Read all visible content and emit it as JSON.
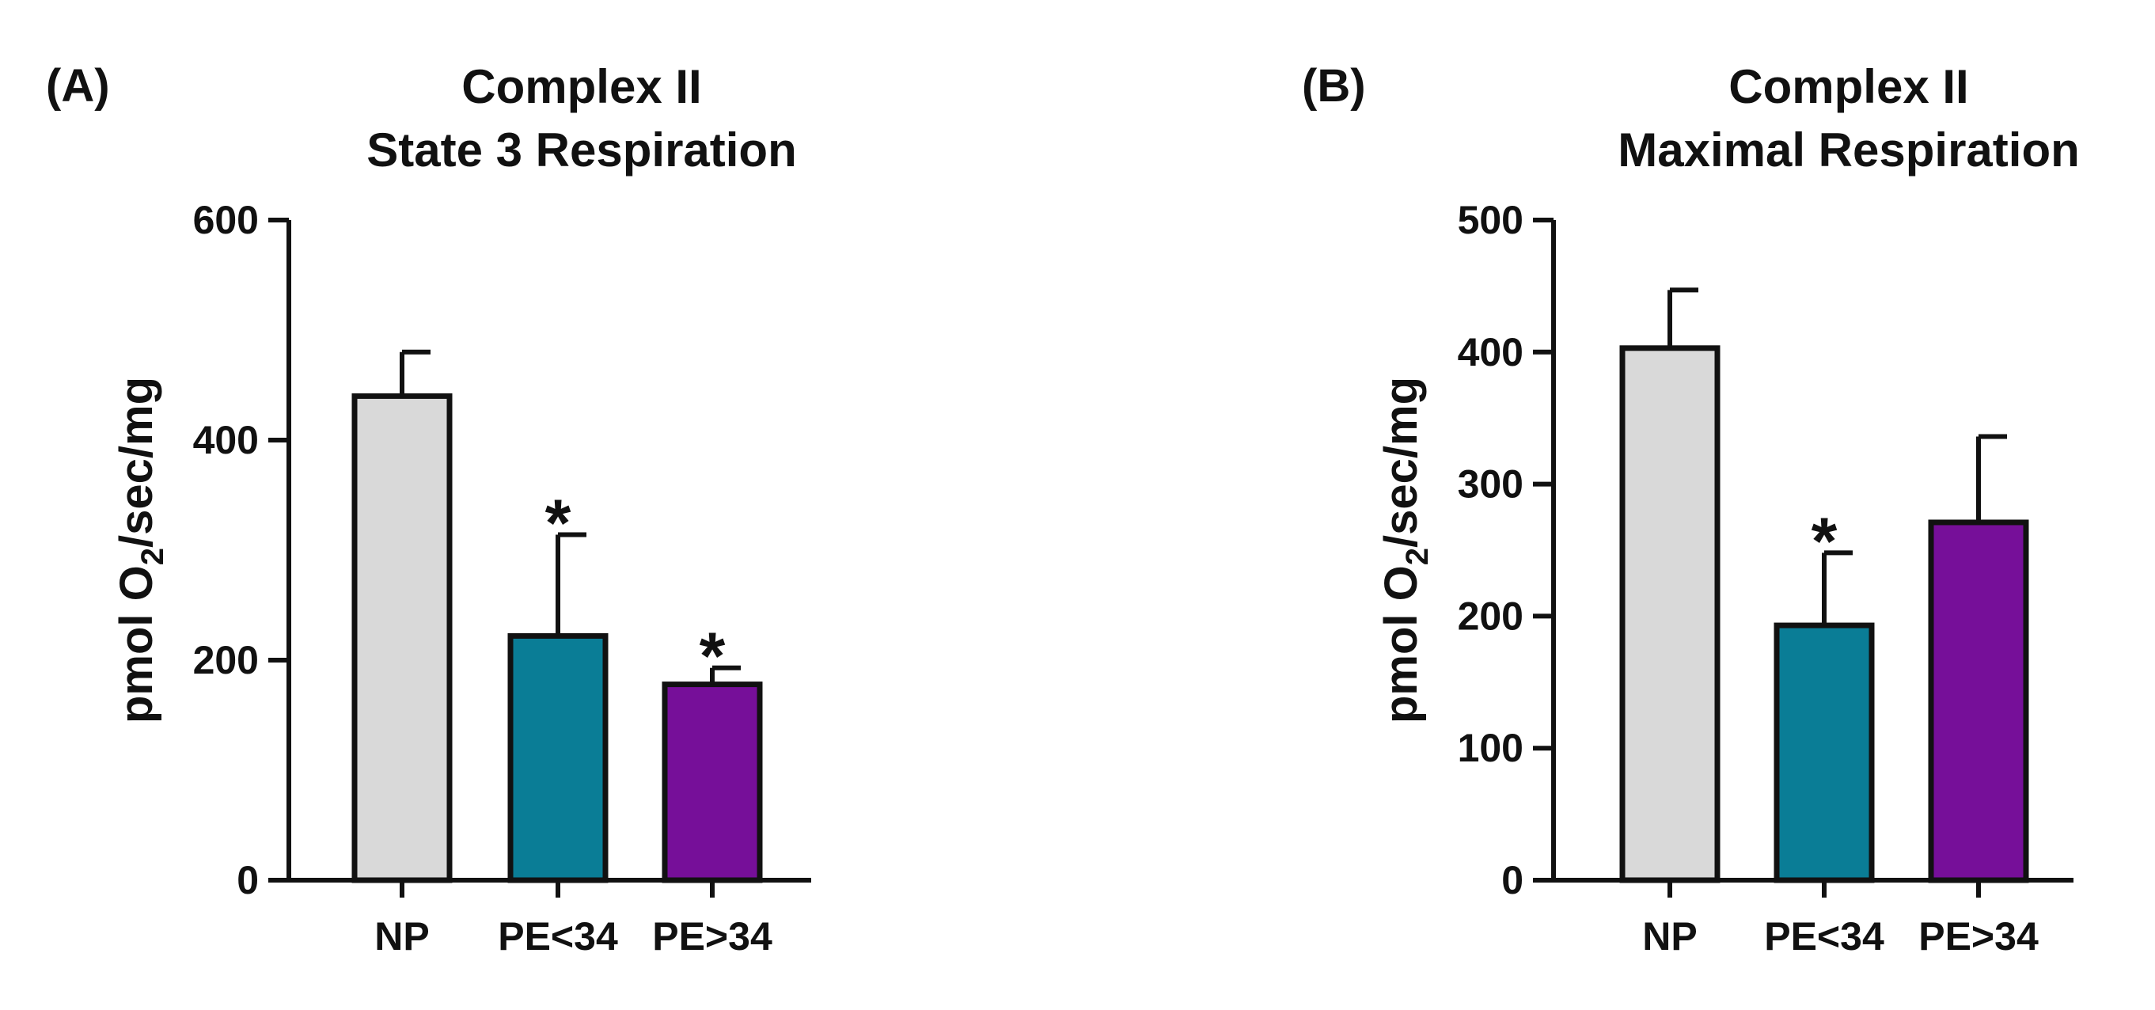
{
  "chart_data": [
    {
      "type": "bar",
      "panel": "(A)",
      "title": [
        "Complex II",
        "State 3 Respiration"
      ],
      "ylabel": {
        "prefix": "pmol O",
        "sub": "2",
        "suffix": "/sec/mg"
      },
      "categories": [
        "NP",
        "PE<34",
        "PE>34"
      ],
      "values": [
        440,
        222,
        178
      ],
      "errors": [
        40,
        92,
        15
      ],
      "significance": [
        "",
        "*",
        "*"
      ],
      "colors": [
        "#d9d9d9",
        "#0a7d96",
        "#760f99"
      ],
      "ylim": [
        0,
        600
      ],
      "yticks": [
        0,
        200,
        400,
        600
      ],
      "grid": false
    },
    {
      "type": "bar",
      "panel": "(B)",
      "title": [
        "Complex II",
        "Maximal Respiration"
      ],
      "ylabel": {
        "prefix": "pmol O",
        "sub": "2",
        "suffix": "/sec/mg"
      },
      "categories": [
        "NP",
        "PE<34",
        "PE>34"
      ],
      "values": [
        403,
        193,
        271
      ],
      "errors": [
        44,
        55,
        65
      ],
      "significance": [
        "",
        "*",
        ""
      ],
      "colors": [
        "#d9d9d9",
        "#0a7d96",
        "#760f99"
      ],
      "ylim": [
        0,
        500
      ],
      "yticks": [
        0,
        100,
        200,
        300,
        400,
        500
      ],
      "grid": false
    }
  ]
}
